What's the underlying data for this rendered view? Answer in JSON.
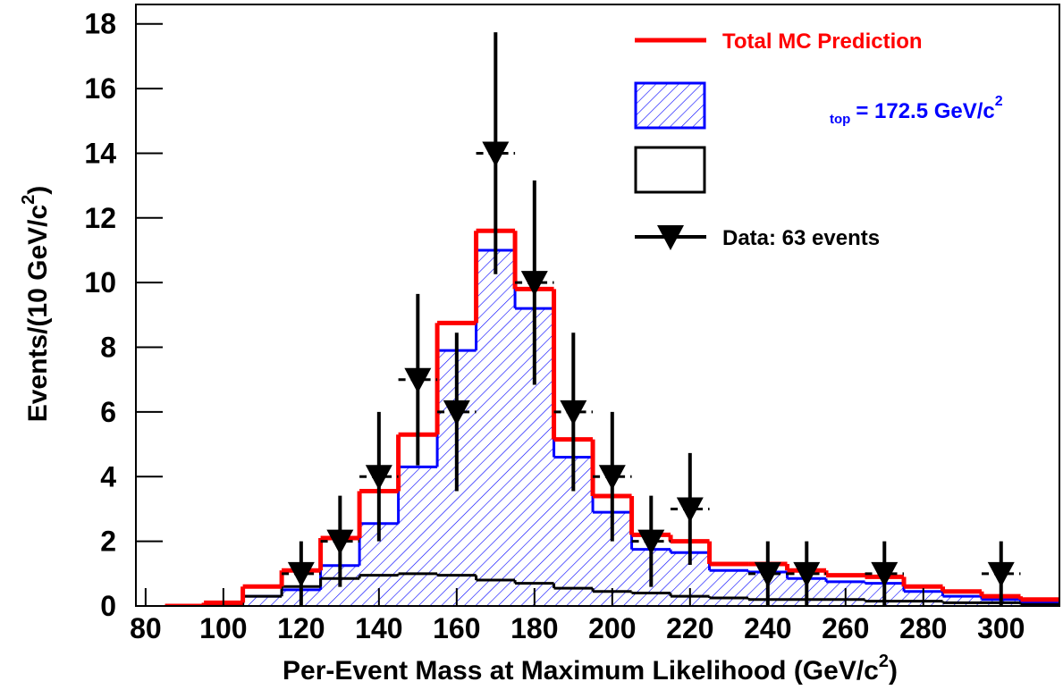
{
  "chart_data": {
    "type": "histogram",
    "x_label": [
      "Per-Event Mass at Maximum Likelihood (GeV/c",
      "2",
      ")"
    ],
    "y_label": [
      "Events/(10 GeV/c",
      "2",
      ")"
    ],
    "bins": [
      85,
      95,
      105,
      115,
      125,
      135,
      145,
      155,
      165,
      175,
      185,
      195,
      205,
      215,
      225,
      235,
      245,
      255,
      265,
      275,
      285,
      295,
      305,
      315
    ],
    "series": [
      {
        "name": "Total MC Prediction",
        "color": "#ff0000",
        "style": "line",
        "values": [
          0,
          0.1,
          0.6,
          1.1,
          2.1,
          3.55,
          5.3,
          8.75,
          11.6,
          9.8,
          5.15,
          3.4,
          2.2,
          2.0,
          1.3,
          1.3,
          1.1,
          0.95,
          0.9,
          0.6,
          0.45,
          0.3,
          0.2
        ]
      },
      {
        "name_parts": [
          "top",
          "= 172.5 GeV/c",
          "2"
        ],
        "color": "#0000ff",
        "style": "hatch",
        "values": [
          0,
          0.05,
          0.3,
          0.5,
          1.25,
          2.55,
          4.3,
          7.9,
          11.0,
          9.2,
          4.6,
          2.9,
          1.75,
          1.65,
          1.1,
          1.05,
          0.85,
          0.75,
          0.7,
          0.45,
          0.3,
          0.2,
          0.1
        ]
      },
      {
        "color": "#000000",
        "style": "box",
        "values": [
          0,
          0,
          0.3,
          0.6,
          0.85,
          0.95,
          1.0,
          0.95,
          0.8,
          0.7,
          0.55,
          0.45,
          0.4,
          0.3,
          0.25,
          0.2,
          0.2,
          0.2,
          0.15,
          0.15,
          0.1,
          0.1,
          0.05
        ]
      }
    ],
    "data_points": {
      "name": "Data: 63 events",
      "color": "#000000",
      "x": [
        120,
        130,
        140,
        150,
        160,
        170,
        180,
        190,
        200,
        210,
        220,
        240,
        250,
        270,
        300
      ],
      "values": [
        1,
        2,
        4,
        7,
        6,
        14,
        10,
        6,
        4,
        2,
        3,
        1,
        1,
        1,
        1
      ],
      "errors": [
        1,
        1.41,
        2,
        2.65,
        2.45,
        3.74,
        3.16,
        2.45,
        2,
        1.41,
        1.73,
        1,
        1,
        1,
        1
      ],
      "bin_width": 10
    },
    "xlim": [
      77.5,
      315
    ],
    "ylim": [
      0,
      18.6
    ],
    "xticks": [
      80,
      100,
      120,
      140,
      160,
      180,
      200,
      220,
      240,
      260,
      280,
      300
    ],
    "yticks": [
      0,
      2,
      4,
      6,
      8,
      10,
      12,
      14,
      16,
      18
    ]
  }
}
